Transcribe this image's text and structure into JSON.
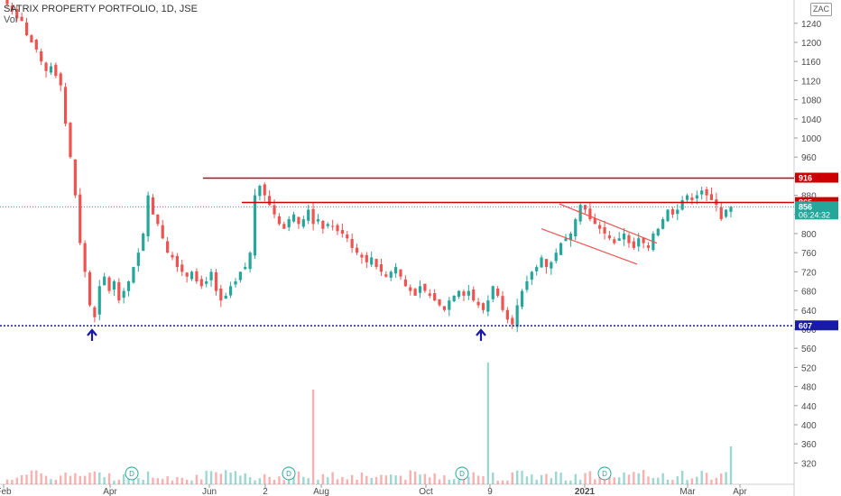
{
  "header": {
    "title": "SATRIX PROPERTY PORTFOLIO, 1D, JSE",
    "volume_label": "Vol",
    "currency": "ZAC"
  },
  "colors": {
    "up": "#26a69a",
    "down": "#ef5350",
    "resistance": "#cc0000",
    "support": "#1a1aa8",
    "last_price": "#26a69a",
    "axis_text": "#4a4a4a",
    "grid": "#e8e8e8"
  },
  "chart_data": {
    "type": "candlestick",
    "y_ticks": [
      320,
      360,
      400,
      440,
      480,
      520,
      560,
      600,
      640,
      680,
      720,
      760,
      800,
      840,
      880,
      920,
      960,
      1000,
      1040,
      1080,
      1120,
      1160,
      1200,
      1240
    ],
    "x_ticks": [
      "Feb",
      "Apr",
      "Jun",
      "2",
      "Aug",
      "Oct",
      "9",
      "2021",
      "Mar",
      "Apr"
    ],
    "price_labels": [
      {
        "value": 916,
        "label": "916",
        "kind": "resistance"
      },
      {
        "value": 865,
        "label": "865",
        "kind": "resistance"
      },
      {
        "value": 856,
        "label": "856",
        "sub": "06:24:32",
        "kind": "last"
      },
      {
        "value": 607,
        "label": "607",
        "kind": "support"
      }
    ],
    "resistance_916": {
      "value": 916,
      "from": "Jun",
      "to": "Apr"
    },
    "resistance_865": {
      "value": 865,
      "from": "Jun–Jul",
      "to": "Apr"
    },
    "support_607": {
      "value": 607
    },
    "dividend_markers": [
      "Apr",
      "Jul",
      "Sep",
      "Dec"
    ],
    "dividend_label": "D",
    "bottom_arrows": [
      "Mar",
      "Sep"
    ],
    "series_close": [
      1280,
      1265,
      1250,
      1245,
      1215,
      1200,
      1185,
      1160,
      1140,
      1150,
      1130,
      1110,
      1030,
      960,
      880,
      780,
      720,
      650,
      625,
      690,
      710,
      680,
      700,
      660,
      680,
      700,
      730,
      760,
      800,
      880,
      840,
      820,
      790,
      760,
      750,
      730,
      720,
      710,
      720,
      700,
      690,
      700,
      720,
      680,
      660,
      670,
      690,
      700,
      720,
      730,
      760,
      880,
      900,
      880,
      860,
      840,
      820,
      810,
      830,
      840,
      820,
      830,
      850,
      820,
      830,
      810,
      820,
      815,
      805,
      800,
      790,
      770,
      760,
      750,
      740,
      750,
      730,
      720,
      710,
      720,
      730,
      710,
      690,
      680,
      670,
      690,
      680,
      670,
      660,
      650,
      640,
      660,
      670,
      680,
      670,
      680,
      660,
      650,
      640,
      660,
      690,
      670,
      640,
      620,
      610,
      650,
      680,
      700,
      720,
      730,
      750,
      730,
      740,
      760,
      780,
      790,
      800,
      830,
      860,
      850,
      830,
      820,
      810,
      800,
      790,
      780,
      790,
      800,
      780,
      770,
      790,
      780,
      770,
      800,
      810,
      830,
      850,
      840,
      850,
      870,
      880,
      870,
      880,
      890,
      880,
      870,
      860,
      830,
      850,
      856
    ]
  }
}
